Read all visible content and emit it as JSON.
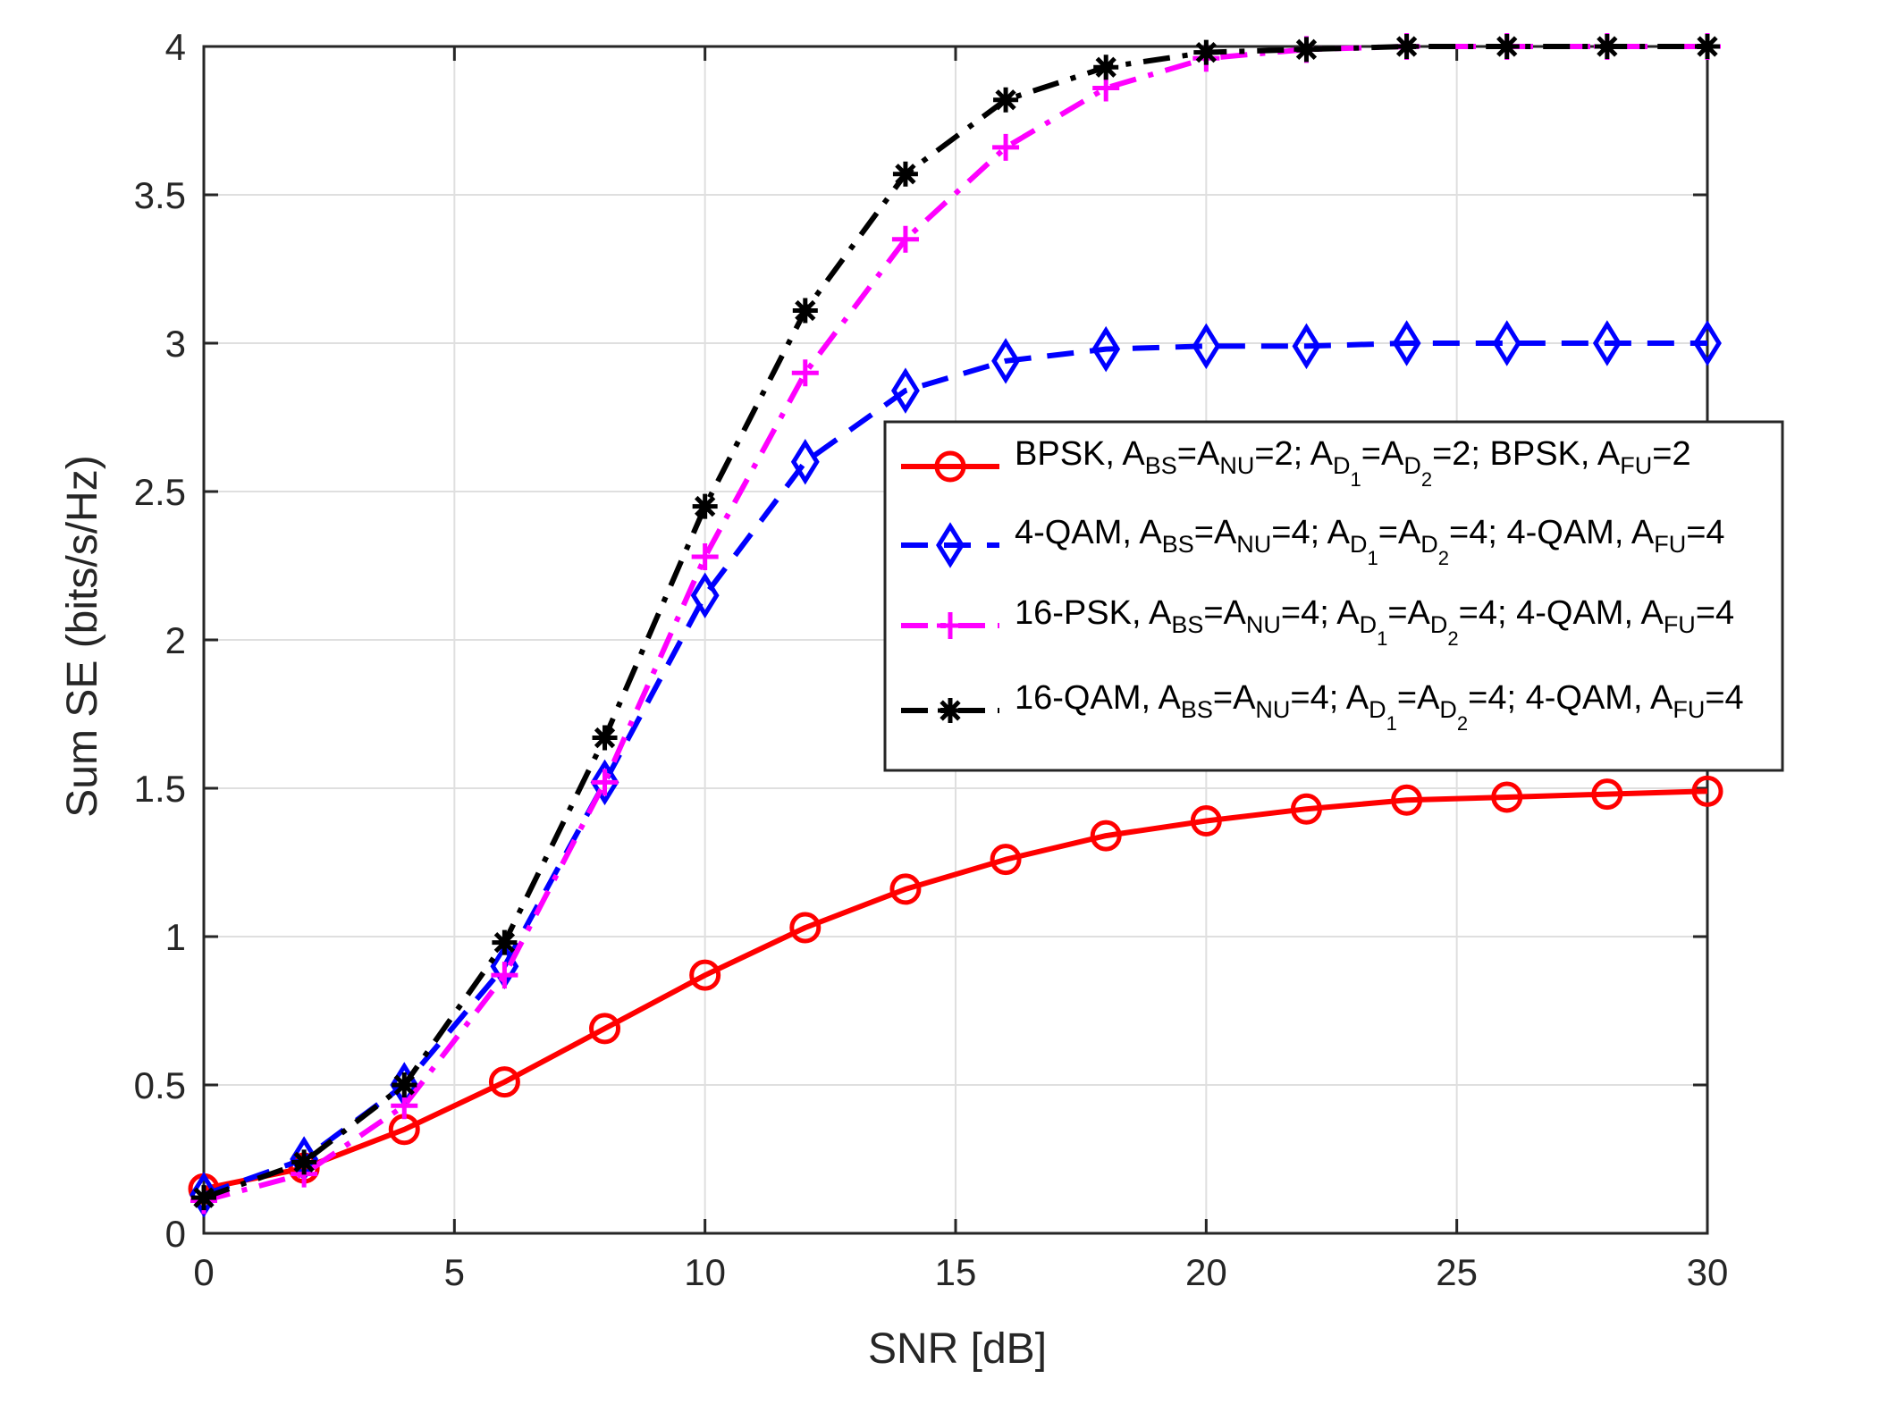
{
  "chart_data": {
    "type": "line",
    "title": "",
    "xlabel": "SNR [dB]",
    "ylabel": "Sum SE (bits/s/Hz)",
    "xlim": [
      0,
      30
    ],
    "ylim": [
      0,
      4
    ],
    "grid": true,
    "legend_position": "center-right",
    "xticks": [
      0,
      5,
      10,
      15,
      20,
      25,
      30
    ],
    "xtick_labels": [
      "0",
      "5",
      "10",
      "15",
      "20",
      "25",
      "30"
    ],
    "yticks": [
      0,
      0.5,
      1,
      1.5,
      2,
      2.5,
      3,
      3.5,
      4
    ],
    "ytick_labels": [
      "0",
      "0.5",
      "1",
      "1.5",
      "2",
      "2.5",
      "3",
      "3.5",
      "4"
    ],
    "x": [
      0,
      2,
      4,
      6,
      8,
      10,
      12,
      14,
      16,
      18,
      20,
      22,
      24,
      26,
      28,
      30
    ],
    "series": [
      {
        "name": "BPSK, A_BS=A_NU=2; A_D1=A_D2=2; BPSK, A_FU=2",
        "legend_parts": [
          {
            "t": "BPSK, A"
          },
          {
            "t": "BS",
            "s": 1
          },
          {
            "t": "=A"
          },
          {
            "t": "NU",
            "s": 1
          },
          {
            "t": "=2; A"
          },
          {
            "t": "D",
            "s": 1
          },
          {
            "t": "1",
            "s": 2
          },
          {
            "t": "=A"
          },
          {
            "t": "D",
            "s": 1
          },
          {
            "t": "2",
            "s": 2
          },
          {
            "t": "=2; BPSK, A"
          },
          {
            "t": "FU",
            "s": 1
          },
          {
            "t": "=2"
          }
        ],
        "color": "#ff0000",
        "dash": "solid",
        "marker": "circle",
        "values": [
          0.15,
          0.22,
          0.35,
          0.51,
          0.69,
          0.87,
          1.03,
          1.16,
          1.26,
          1.34,
          1.39,
          1.43,
          1.46,
          1.47,
          1.48,
          1.49
        ]
      },
      {
        "name": "4-QAM, A_BS=A_NU=4; A_D1=A_D2=4; 4-QAM, A_FU=4",
        "legend_parts": [
          {
            "t": "4-QAM, A"
          },
          {
            "t": "BS",
            "s": 1
          },
          {
            "t": "=A"
          },
          {
            "t": "NU",
            "s": 1
          },
          {
            "t": "=4; A"
          },
          {
            "t": "D",
            "s": 1
          },
          {
            "t": "1",
            "s": 2
          },
          {
            "t": "=A"
          },
          {
            "t": "D",
            "s": 1
          },
          {
            "t": "2",
            "s": 2
          },
          {
            "t": "=4; 4-QAM, A"
          },
          {
            "t": "FU",
            "s": 1
          },
          {
            "t": "=4"
          }
        ],
        "color": "#0000ff",
        "dash": "dashed",
        "marker": "diamond",
        "values": [
          0.13,
          0.25,
          0.5,
          0.9,
          1.52,
          2.15,
          2.6,
          2.84,
          2.94,
          2.98,
          2.99,
          2.99,
          3.0,
          3.0,
          3.0,
          3.0
        ]
      },
      {
        "name": "16-PSK, A_BS=A_NU=4; A_D1=A_D2=4; 4-QAM, A_FU=4",
        "legend_parts": [
          {
            "t": "16-PSK, A"
          },
          {
            "t": "BS",
            "s": 1
          },
          {
            "t": "=A"
          },
          {
            "t": "NU",
            "s": 1
          },
          {
            "t": "=4; A"
          },
          {
            "t": "D",
            "s": 1
          },
          {
            "t": "1",
            "s": 2
          },
          {
            "t": "=A"
          },
          {
            "t": "D",
            "s": 1
          },
          {
            "t": "2",
            "s": 2
          },
          {
            "t": "=4; 4-QAM, A"
          },
          {
            "t": "FU",
            "s": 1
          },
          {
            "t": "=4"
          }
        ],
        "color": "#ff00ff",
        "dash": "dashdot",
        "marker": "plus",
        "values": [
          0.11,
          0.2,
          0.43,
          0.87,
          1.52,
          2.28,
          2.9,
          3.35,
          3.66,
          3.86,
          3.96,
          3.99,
          4.0,
          4.0,
          4.0,
          4.0
        ]
      },
      {
        "name": "16-QAM, A_BS=A_NU=4; A_D1=A_D2=4; 4-QAM, A_FU=4",
        "legend_parts": [
          {
            "t": "16-QAM, A"
          },
          {
            "t": "BS",
            "s": 1
          },
          {
            "t": "=A"
          },
          {
            "t": "NU",
            "s": 1
          },
          {
            "t": "=4; A"
          },
          {
            "t": "D",
            "s": 1
          },
          {
            "t": "1",
            "s": 2
          },
          {
            "t": "=A"
          },
          {
            "t": "D",
            "s": 1
          },
          {
            "t": "2",
            "s": 2
          },
          {
            "t": "=4; 4-QAM, A"
          },
          {
            "t": "FU",
            "s": 1
          },
          {
            "t": "=4"
          }
        ],
        "color": "#000000",
        "dash": "dashdot",
        "marker": "asterisk",
        "values": [
          0.12,
          0.24,
          0.5,
          0.98,
          1.67,
          2.45,
          3.11,
          3.57,
          3.82,
          3.93,
          3.98,
          3.99,
          4.0,
          4.0,
          4.0,
          4.0
        ]
      }
    ]
  }
}
